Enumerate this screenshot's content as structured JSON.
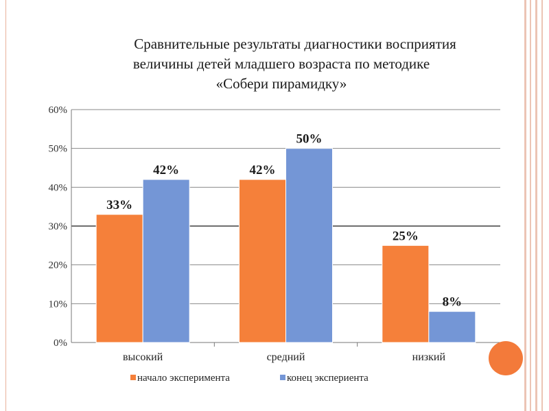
{
  "title": {
    "line1": "Сравнительные результаты диагностики восприятия",
    "line2": "величины детей младшего возраста по методике",
    "line3": "«Собери  пирамидку»"
  },
  "colors": {
    "series1": "#f5803a",
    "series2": "#7496d6",
    "accent_circle": "#f37a3a",
    "slide_lines": "#ecc4b4"
  },
  "chart_data": {
    "type": "bar",
    "categories": [
      "высокий",
      "средний",
      "низкий"
    ],
    "series": [
      {
        "name": "начало эксперимента",
        "values": [
          33,
          42,
          25
        ],
        "labels": [
          "33%",
          "42%",
          "25%"
        ]
      },
      {
        "name": "конец экспериента",
        "values": [
          42,
          50,
          8
        ],
        "labels": [
          "42%",
          "50%",
          "8%"
        ]
      }
    ],
    "y_ticks": [
      "0%",
      "10%",
      "20%",
      "30%",
      "40%",
      "50%",
      "60%"
    ],
    "ylim": [
      0,
      60
    ],
    "grid": true,
    "legend_position": "bottom"
  }
}
